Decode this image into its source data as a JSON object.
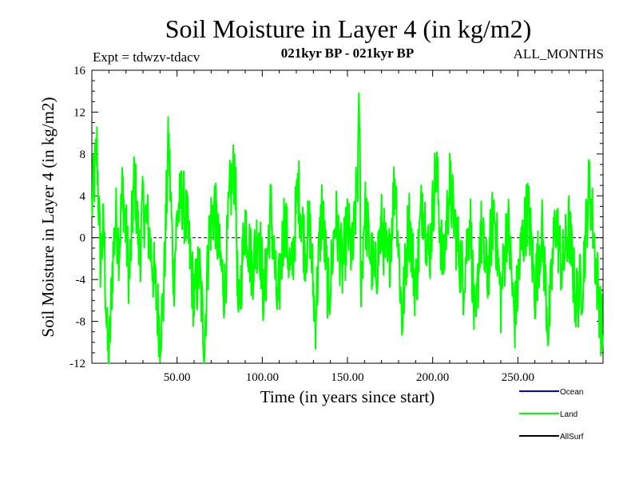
{
  "chart_data": {
    "type": "line",
    "title": "Soil Moisture in Layer 4 (in kg/m2)",
    "experiment": "Expt = tdwzv-tdacv",
    "period": "021kyr BP - 021kyr BP",
    "season": "ALL_MONTHS",
    "xlabel": "Time (in years since start)",
    "ylabel": "Soil Moisture in Layer 4 (in kg/m2)",
    "xlim": [
      0,
      300
    ],
    "ylim": [
      -12,
      16
    ],
    "x_ticks": [
      50,
      100,
      150,
      200,
      250
    ],
    "x_tick_labels": [
      "50.00",
      "100.00",
      "150.00",
      "200.00",
      "250.00"
    ],
    "y_ticks": [
      -12,
      -8,
      -4,
      0,
      4,
      8,
      12,
      16
    ],
    "y_tick_labels": [
      "-12",
      "-8",
      "-4",
      "0",
      "4",
      "8",
      "12",
      "16"
    ],
    "zero_line": true,
    "legend": [
      "Ocean",
      "Land",
      "AllSurf"
    ],
    "series": [
      {
        "name": "Land",
        "color": "#00ff00",
        "x": [
          0,
          3,
          5,
          7,
          9,
          10,
          12,
          14,
          16,
          18,
          20,
          22,
          25,
          28,
          30,
          33,
          36,
          38,
          40,
          42,
          45,
          48,
          50,
          53,
          56,
          60,
          63,
          66,
          69,
          72,
          75,
          78,
          81,
          84,
          86,
          90,
          94,
          98,
          101,
          105,
          109,
          113,
          117,
          121,
          125,
          128,
          131,
          135,
          139,
          143,
          147,
          150,
          153,
          156,
          157,
          158,
          160,
          163,
          166,
          170,
          174,
          178,
          182,
          186,
          190,
          194,
          198,
          202,
          206,
          210,
          214,
          218,
          222,
          225,
          228,
          232,
          236,
          240,
          244,
          248,
          252,
          256,
          260,
          264,
          268,
          272,
          276,
          280,
          284,
          288,
          292,
          296,
          300
        ],
        "values": [
          3,
          8.5,
          -2,
          1,
          -10,
          -12,
          -3,
          2,
          -1,
          5,
          0.5,
          -4,
          6,
          -2,
          3,
          1,
          -3,
          -6,
          -9,
          -6,
          9.5,
          -4,
          2,
          4,
          1,
          -6,
          -3,
          -10,
          1,
          3,
          -2,
          -5,
          4,
          7,
          -8,
          2,
          -3,
          1,
          -6,
          3,
          -7,
          2,
          -4,
          5,
          -1,
          1,
          -8,
          3,
          -6,
          2,
          -3,
          1,
          -2,
          6,
          12.5,
          -5,
          3,
          -1,
          -4,
          1,
          -3,
          6,
          -8,
          2,
          -5,
          4,
          -2,
          7,
          -3,
          5,
          0,
          -4,
          2,
          -10,
          1,
          -4,
          3,
          -6,
          2,
          -8,
          -1,
          3,
          -5,
          1,
          -9,
          2,
          -3,
          1,
          -6,
          -4,
          5.5,
          -3,
          -10
        ]
      }
    ]
  }
}
